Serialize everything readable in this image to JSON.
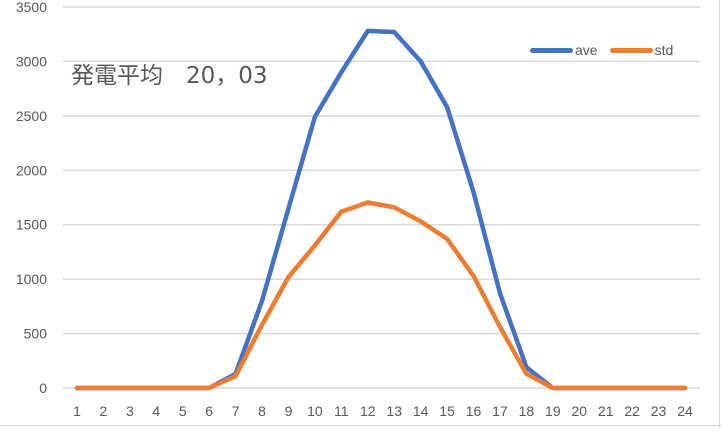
{
  "chart_data": {
    "type": "line",
    "title": "発電平均　20，03",
    "xlabel": "",
    "ylabel": "",
    "x": [
      1,
      2,
      3,
      4,
      5,
      6,
      7,
      8,
      9,
      10,
      11,
      12,
      13,
      14,
      15,
      16,
      17,
      18,
      19,
      20,
      21,
      22,
      23,
      24
    ],
    "series": [
      {
        "name": "ave",
        "color": "#4472C4",
        "values": [
          0,
          0,
          0,
          0,
          0,
          0,
          130,
          800,
          1650,
          2490,
          2900,
          3280,
          3270,
          3000,
          2580,
          1800,
          870,
          190,
          0,
          0,
          0,
          0,
          0,
          0
        ]
      },
      {
        "name": "std",
        "color": "#ED7D31",
        "values": [
          0,
          0,
          0,
          0,
          0,
          0,
          110,
          580,
          1020,
          1310,
          1620,
          1705,
          1660,
          1530,
          1370,
          1030,
          560,
          130,
          0,
          0,
          0,
          0,
          0,
          0
        ]
      }
    ],
    "ylim": [
      0,
      3500
    ],
    "yticks": [
      0,
      500,
      1000,
      1500,
      2000,
      2500,
      3000,
      3500
    ],
    "grid": true,
    "legend_position": "top-right"
  },
  "title": {
    "text": "発電平均　20，03"
  },
  "legend": {
    "items": [
      {
        "label": "ave",
        "color": "#4472C4"
      },
      {
        "label": "std",
        "color": "#ED7D31"
      }
    ]
  },
  "axes": {
    "y_tick_labels": [
      "0",
      "500",
      "1000",
      "1500",
      "2000",
      "2500",
      "3000",
      "3500"
    ],
    "x_tick_labels": [
      "1",
      "2",
      "3",
      "4",
      "5",
      "6",
      "7",
      "8",
      "9",
      "10",
      "11",
      "12",
      "13",
      "14",
      "15",
      "16",
      "17",
      "18",
      "19",
      "20",
      "21",
      "22",
      "23",
      "24"
    ]
  },
  "colors": {
    "grid": "#d9d9d9",
    "axis_text": "#595959",
    "background": "#ffffff"
  }
}
